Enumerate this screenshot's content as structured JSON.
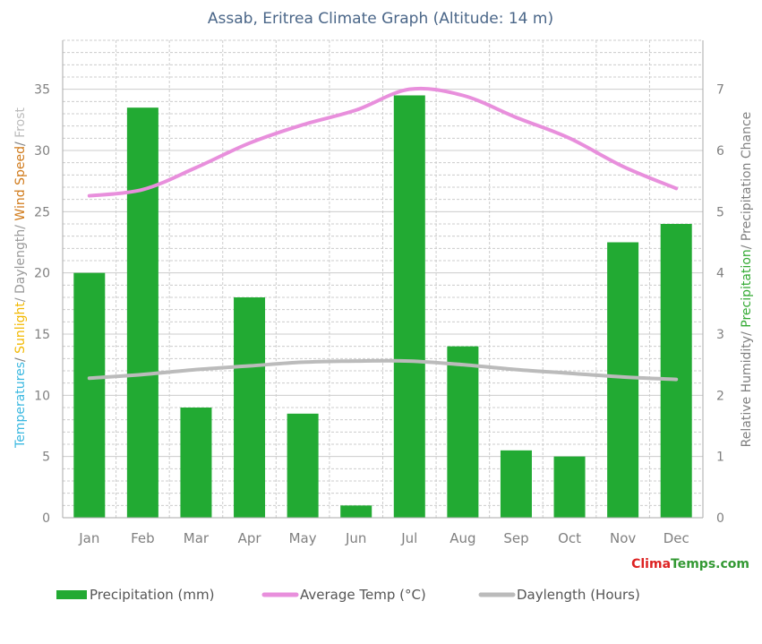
{
  "chart_data": {
    "type": "bar",
    "title": "Assab, Eritrea Climate Graph (Altitude: 14 m)",
    "categories": [
      "Jan",
      "Feb",
      "Mar",
      "Apr",
      "May",
      "Jun",
      "Jul",
      "Aug",
      "Sep",
      "Oct",
      "Nov",
      "Dec"
    ],
    "series": [
      {
        "name": "Precipitation (mm)",
        "kind": "bar",
        "axis": "left",
        "color": "#22aa33",
        "values": [
          20,
          33.5,
          9,
          18,
          8.5,
          1,
          34.5,
          14,
          5.5,
          5,
          22.5,
          24
        ]
      },
      {
        "name": "Average Temp (°C)",
        "kind": "line",
        "axis": "left",
        "color": "#e88fdc",
        "values": [
          26.3,
          26.8,
          28.6,
          30.6,
          32.1,
          33.3,
          35,
          34.5,
          32.7,
          31,
          28.7,
          26.9
        ]
      },
      {
        "name": "Daylength (Hours)",
        "kind": "line",
        "axis": "left",
        "color": "#bbbbbb",
        "values": [
          11.4,
          11.7,
          12.1,
          12.4,
          12.7,
          12.8,
          12.8,
          12.5,
          12.1,
          11.8,
          11.5,
          11.3
        ]
      }
    ],
    "ylim": [
      0,
      39
    ],
    "y_ticks": [
      0,
      5,
      10,
      15,
      20,
      25,
      30,
      35
    ],
    "y2lim": [
      0,
      7.8
    ],
    "y2_ticks": [
      0,
      1,
      2,
      3,
      4,
      5,
      6,
      7
    ],
    "ylabel_parts": [
      {
        "text": "Temperatures",
        "color": "#3bb8e0"
      },
      {
        "text": "/ ",
        "color": "#808080"
      },
      {
        "text": "Sunlight",
        "color": "#f2b800"
      },
      {
        "text": "/ Daylength/ ",
        "color": "#999999"
      },
      {
        "text": "Wind Speed",
        "color": "#d07a1a"
      },
      {
        "text": "/ ",
        "color": "#808080"
      },
      {
        "text": "Frost",
        "color": "#bbbbbb"
      }
    ],
    "y2label_parts": [
      {
        "text": "Relative Humidity/ ",
        "color": "#808080"
      },
      {
        "text": "Precipitation",
        "color": "#33aa33"
      },
      {
        "text": "/ Precipitation Chance",
        "color": "#808080"
      }
    ],
    "grid": true,
    "legend_placement": "bottom"
  },
  "brand": {
    "part1": "Clima",
    "part2": "Temps",
    "part3": ".com",
    "color1": "#dd2222",
    "color2": "#339933"
  },
  "colors": {
    "axis_text": "#808080",
    "title_text": "#4a6688",
    "grid": "#cccccc"
  }
}
